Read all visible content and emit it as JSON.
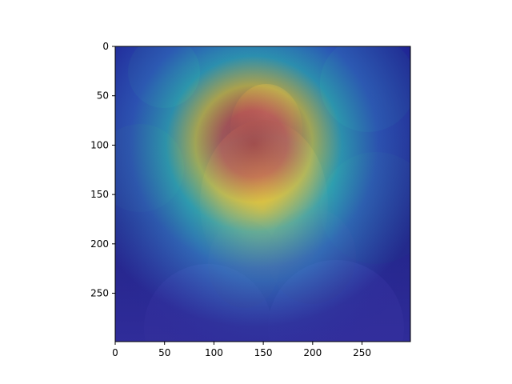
{
  "figure": {
    "image_description_name": "baboon-heatmap-overlay",
    "colors": {
      "background": "#ffffff",
      "axis": "#000000",
      "colormap": [
        "#1e1aa6",
        "#2e5bd8",
        "#2fb7d0",
        "#f0d23a",
        "#e8463a",
        "#c71c21"
      ]
    }
  },
  "axes": {
    "x": {
      "range": [
        0,
        299
      ],
      "ticks": [
        0,
        50,
        100,
        150,
        200,
        250
      ],
      "tick_labels": [
        "0",
        "50",
        "100",
        "150",
        "200",
        "250"
      ]
    },
    "y": {
      "range": [
        0,
        299
      ],
      "inverted": true,
      "ticks": [
        0,
        50,
        100,
        150,
        200,
        250
      ],
      "tick_labels": [
        "0",
        "50",
        "100",
        "150",
        "200",
        "250"
      ]
    }
  }
}
